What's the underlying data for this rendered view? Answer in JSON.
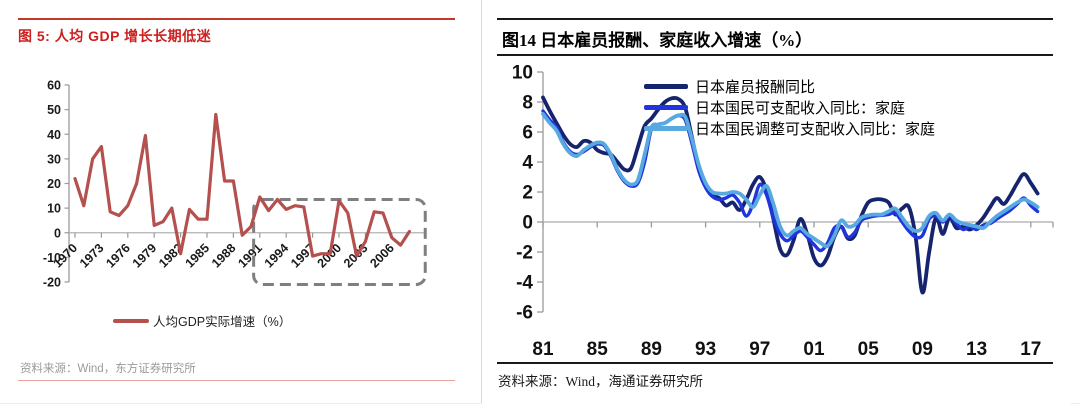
{
  "left_panel": {
    "title": "图 5: 人均 GDP 增长长期低迷",
    "source": "资料来源：Wind，东方证券研究所",
    "title_color": "#cc1f1f",
    "accent_color": "#b4504e"
  },
  "right_panel": {
    "title": "图14 日本雇员报酬、家庭收入增速（%）",
    "source": "资料来源：Wind，海通证券研究所"
  },
  "chart_data": [
    {
      "type": "line",
      "title": "图 5: 人均 GDP 增长长期低迷",
      "xlabel": "",
      "ylabel": "",
      "x_start": 1970,
      "x_step": 1,
      "xticks": [
        1970,
        1973,
        1976,
        1979,
        1982,
        1985,
        1988,
        1991,
        1994,
        1997,
        2000,
        2003,
        2006
      ],
      "yticks": [
        -20,
        -10,
        0,
        10,
        20,
        30,
        40,
        50,
        60
      ],
      "ylim": [
        -20,
        60
      ],
      "xlim": [
        1970,
        2008
      ],
      "grid": false,
      "legend_position": "bottom",
      "series": [
        {
          "name": "人均GDP实际增速（%）",
          "color": "#b4504e",
          "values": [
            22,
            11,
            30,
            35,
            8.5,
            7,
            11,
            20,
            39.5,
            3,
            4.5,
            10,
            -8.5,
            9.5,
            5.5,
            5.5,
            48,
            21,
            21,
            -1,
            2.5,
            14.5,
            9,
            13.5,
            9.5,
            11,
            10.5,
            -9.5,
            -8.5,
            -8.5,
            13,
            8,
            -9.5,
            -3.5,
            8.5,
            8,
            -2,
            -5,
            0.5
          ]
        }
      ],
      "annotation_box": {
        "x_from": 1990.3,
        "x_to": 2009.8,
        "y_from": -21,
        "y_to": 13.5,
        "style": "dashed",
        "color": "#7f7f7f",
        "meaning": "highlight of post-1990 low growth period"
      },
      "source": "资料来源：Wind，东方证券研究所"
    },
    {
      "type": "line",
      "title": "图14 日本雇员报酬、家庭收入增速（%）",
      "xlabel": "",
      "ylabel": "",
      "x_start": 1981,
      "x_step": 0.5,
      "xticks": [
        1981,
        1985,
        1989,
        1993,
        1997,
        2001,
        2005,
        2009,
        2013,
        2017
      ],
      "xtick_labels": [
        "81",
        "85",
        "89",
        "93",
        "97",
        "01",
        "05",
        "09",
        "13",
        "17"
      ],
      "yticks": [
        -6,
        -4,
        -2,
        0,
        2,
        4,
        6,
        8,
        10
      ],
      "ylim": [
        -6,
        10
      ],
      "xlim": [
        1981,
        2017.5
      ],
      "grid": false,
      "legend_position": "top-inside",
      "series": [
        {
          "name": "日本雇员报酬同比",
          "color": "#16246e",
          "values": [
            8.3,
            7.4,
            6.6,
            5.8,
            5.2,
            5.0,
            5.4,
            5.3,
            4.8,
            4.6,
            4.5,
            4.0,
            3.5,
            3.6,
            5.0,
            6.4,
            6.9,
            7.5,
            8.0,
            8.25,
            8.2,
            7.6,
            5.6,
            3.6,
            2.4,
            1.8,
            1.6,
            1.1,
            1.3,
            0.8,
            1.5,
            2.5,
            3.0,
            2.1,
            0.2,
            -1.8,
            -2.2,
            -1.2,
            0.2,
            -0.8,
            -2.4,
            -2.9,
            -2.3,
            -1.0,
            -0.3,
            -1.1,
            -0.9,
            0.4,
            1.3,
            1.5,
            1.5,
            1.3,
            0.5,
            0.9,
            1.0,
            -1.0,
            -4.7,
            -2.0,
            0.3,
            -0.8,
            0.3,
            -0.4,
            -0.3,
            -0.5,
            -0.2,
            0.3,
            1.0,
            1.6,
            1.2,
            1.8,
            2.6,
            3.2,
            2.6,
            1.9
          ]
        },
        {
          "name": "日本国民可支配收入同比：家庭",
          "color": "#2135dd",
          "values": [
            7.4,
            6.8,
            6.3,
            5.3,
            4.7,
            4.5,
            4.7,
            5.0,
            5.2,
            5.1,
            4.4,
            3.4,
            2.7,
            2.4,
            2.6,
            4.0,
            6.2,
            6.5,
            6.6,
            6.9,
            7.1,
            6.8,
            5.2,
            3.4,
            2.3,
            1.7,
            1.5,
            1.6,
            1.8,
            1.3,
            0.4,
            1.2,
            2.5,
            1.8,
            0.3,
            -0.8,
            -1.25,
            -0.9,
            -0.6,
            -1.0,
            -1.5,
            -1.9,
            -1.4,
            -0.4,
            -0.3,
            -1.0,
            -0.7,
            0.1,
            0.3,
            0.4,
            0.45,
            0.5,
            0.6,
            0.0,
            -0.6,
            -1.0,
            -0.9,
            0.2,
            0.4,
            0.0,
            0.4,
            -0.1,
            -0.5,
            -0.3,
            -0.5,
            -0.2,
            -0.1,
            0.2,
            0.5,
            0.8,
            1.2,
            1.6,
            1.1,
            0.7
          ]
        },
        {
          "name": "日本国民调整可支配收入同比：家庭",
          "color": "#57a9e0",
          "values": [
            7.2,
            6.6,
            6.1,
            5.2,
            4.6,
            4.4,
            4.8,
            5.1,
            5.3,
            5.2,
            4.5,
            3.5,
            2.8,
            2.5,
            2.8,
            4.5,
            6.3,
            6.5,
            6.6,
            6.9,
            7.1,
            7.0,
            5.5,
            3.8,
            2.6,
            2.0,
            1.9,
            1.9,
            2.0,
            1.9,
            1.5,
            1.0,
            1.8,
            2.4,
            1.2,
            -0.3,
            -0.9,
            -0.6,
            -0.4,
            -0.8,
            -1.1,
            -1.4,
            -1.6,
            -0.9,
            0.1,
            -0.3,
            -0.2,
            0.3,
            0.45,
            0.5,
            0.5,
            0.7,
            0.9,
            0.3,
            -0.3,
            -0.6,
            -0.4,
            0.4,
            0.6,
            0.1,
            0.5,
            0.1,
            -0.1,
            -0.2,
            -0.3,
            -0.4,
            0.0,
            0.4,
            0.7,
            1.0,
            1.3,
            1.5,
            1.3,
            1.0
          ]
        }
      ],
      "source": "资料来源：Wind，海通证券研究所"
    }
  ]
}
